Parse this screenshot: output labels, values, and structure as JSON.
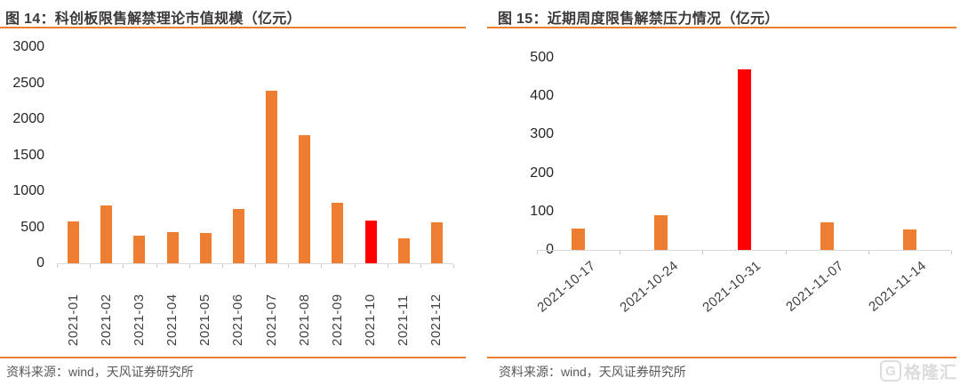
{
  "panels": [
    {
      "title": "图 14：科创板限售解禁理论市值规模（亿元）",
      "source": "资料来源：wind，天风证券研究所"
    },
    {
      "title": "图 15：近期周度限售解禁压力情况（亿元）",
      "source": "资料来源：wind，天风证券研究所"
    }
  ],
  "watermark": {
    "icon_letter": "G",
    "text": "格隆汇"
  },
  "colors": {
    "bar": "#ED7D31",
    "highlight_bar": "#FF0000",
    "accent_rule": "#ED7D31",
    "axis_line": "#D9D9D9",
    "title_text": "#3B3838",
    "source_text": "#595959",
    "tick_text": "#262626",
    "watermark_text": "#DCDCDC"
  },
  "chart_data": [
    {
      "type": "bar",
      "title": "图 14：科创板限售解禁理论市值规模（亿元）",
      "categories": [
        "2021-01",
        "2021-02",
        "2021-03",
        "2021-04",
        "2021-05",
        "2021-06",
        "2021-07",
        "2021-08",
        "2021-09",
        "2021-10",
        "2021-11",
        "2021-12"
      ],
      "values": [
        575,
        800,
        380,
        430,
        425,
        755,
        2390,
        1780,
        840,
        595,
        350,
        570
      ],
      "highlight_index": 9,
      "highlight_category": "2021-10",
      "bar_color": "#ED7D31",
      "highlight_color": "#FF0000",
      "xlabel": "",
      "ylabel": "",
      "ylim": [
        0,
        3000
      ],
      "yticks": [
        0,
        500,
        1000,
        1500,
        2000,
        2500,
        3000
      ],
      "grid": false,
      "legend": false,
      "x_tick_rotation": 90,
      "source": "资料来源：wind，天风证券研究所"
    },
    {
      "type": "bar",
      "title": "图 15：近期周度限售解禁压力情况（亿元）",
      "categories": [
        "2021-10-17",
        "2021-10-24",
        "2021-10-31",
        "2021-11-07",
        "2021-11-14"
      ],
      "values": [
        55,
        90,
        470,
        72,
        53
      ],
      "highlight_index": 2,
      "highlight_category": "2021-10-31",
      "bar_color": "#ED7D31",
      "highlight_color": "#FF0000",
      "xlabel": "",
      "ylabel": "",
      "ylim": [
        0,
        500
      ],
      "yticks": [
        0,
        100,
        200,
        300,
        400,
        500
      ],
      "grid": false,
      "legend": false,
      "x_tick_rotation": 45,
      "source": "资料来源：wind，天风证券研究所"
    }
  ]
}
